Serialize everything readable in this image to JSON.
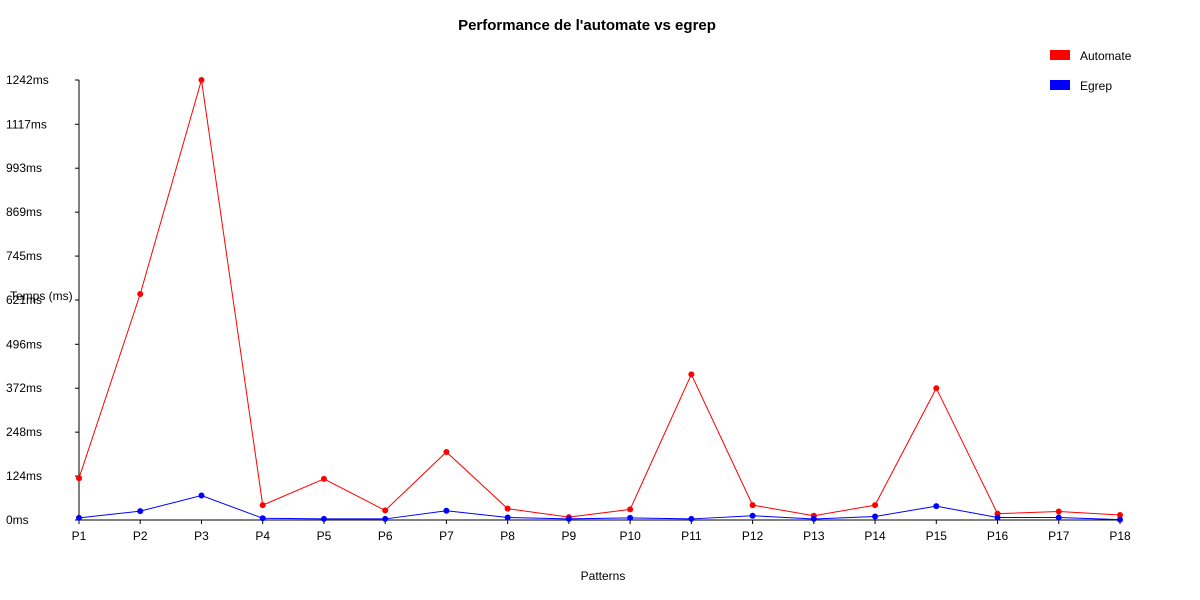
{
  "chart_data": {
    "type": "line",
    "title": "Performance de l'automate vs egrep",
    "xlabel": "Patterns",
    "ylabel": "Temps (ms)",
    "categories": [
      "P1",
      "P2",
      "P3",
      "P4",
      "P5",
      "P6",
      "P7",
      "P8",
      "P9",
      "P10",
      "P11",
      "P12",
      "P13",
      "P14",
      "P15",
      "P16",
      "P17",
      "P18"
    ],
    "y_ticks": [
      0,
      124,
      248,
      372,
      496,
      621,
      745,
      869,
      993,
      1117,
      1242
    ],
    "y_tick_labels": [
      "0ms",
      "124ms",
      "248ms",
      "372ms",
      "496ms",
      "621ms",
      "745ms",
      "869ms",
      "993ms",
      "1117ms",
      "1242ms"
    ],
    "ylim": [
      0,
      1242
    ],
    "grid": false,
    "legend_position": "top-right",
    "series": [
      {
        "name": "Automate",
        "color": "#ff0000",
        "values": [
          118,
          638,
          1242,
          42,
          116,
          27,
          192,
          32,
          8,
          30,
          411,
          42,
          12,
          42,
          372,
          18,
          24,
          14
        ]
      },
      {
        "name": "Egrep",
        "color": "#0000ff",
        "values": [
          6,
          25,
          69,
          5,
          3,
          3,
          26,
          7,
          3,
          6,
          3,
          12,
          3,
          10,
          39,
          7,
          7,
          1
        ]
      }
    ]
  }
}
